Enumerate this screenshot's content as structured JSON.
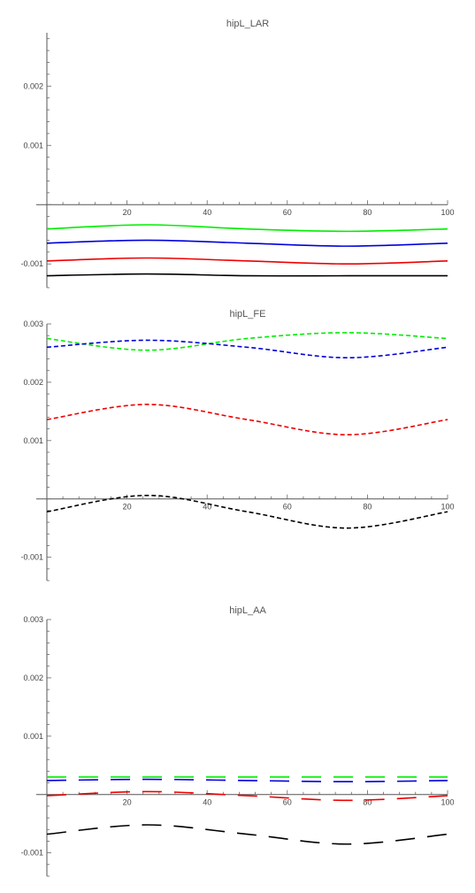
{
  "chart_data": [
    {
      "type": "line",
      "title": "hipL_LAR",
      "xlabel": "",
      "ylabel": "",
      "xlim": [
        0,
        100
      ],
      "ylim": [
        -0.0014,
        0.0029
      ],
      "x_ticks": [
        20,
        40,
        60,
        80,
        100
      ],
      "x_tick_labels": [
        "20",
        "40",
        "60",
        "80",
        "100"
      ],
      "y_ticks": [
        -0.001,
        0.001,
        0.002
      ],
      "y_tick_labels": [
        "-0.001",
        "0.001",
        "0.002"
      ],
      "grid": false,
      "series": [
        {
          "color": "#00ee00",
          "dash": "solid",
          "x": [
            0,
            25,
            50,
            75,
            100
          ],
          "y": [
            -0.00041,
            -0.00034,
            -0.00041,
            -0.00045,
            -0.00041
          ]
        },
        {
          "color": "#0000dd",
          "dash": "solid",
          "x": [
            0,
            25,
            50,
            75,
            100
          ],
          "y": [
            -0.00065,
            -0.0006,
            -0.00065,
            -0.0007,
            -0.00065
          ]
        },
        {
          "color": "#ee0000",
          "dash": "solid",
          "x": [
            0,
            25,
            50,
            75,
            100
          ],
          "y": [
            -0.00095,
            -0.0009,
            -0.00095,
            -0.001,
            -0.00095
          ]
        },
        {
          "color": "#000000",
          "dash": "solid",
          "x": [
            0,
            25,
            50,
            75,
            100
          ],
          "y": [
            -0.0012,
            -0.00117,
            -0.0012,
            -0.0012,
            -0.0012
          ]
        }
      ]
    },
    {
      "type": "line",
      "title": "hipL_FE",
      "xlabel": "",
      "ylabel": "",
      "xlim": [
        0,
        100
      ],
      "ylim": [
        -0.0014,
        0.003
      ],
      "x_ticks": [
        20,
        40,
        60,
        80,
        100
      ],
      "x_tick_labels": [
        "20",
        "40",
        "60",
        "80",
        "100"
      ],
      "y_ticks": [
        -0.001,
        0.001,
        0.002,
        0.003
      ],
      "y_tick_labels": [
        "-0.001",
        "0.001",
        "0.002",
        "0.003"
      ],
      "grid": false,
      "series": [
        {
          "color": "#00ee00",
          "dash": "short",
          "x": [
            0,
            25,
            50,
            75,
            100
          ],
          "y": [
            0.00275,
            0.00255,
            0.00275,
            0.00285,
            0.00275
          ]
        },
        {
          "color": "#0000dd",
          "dash": "short",
          "x": [
            0,
            25,
            50,
            75,
            100
          ],
          "y": [
            0.0026,
            0.00272,
            0.0026,
            0.00242,
            0.0026
          ]
        },
        {
          "color": "#ee0000",
          "dash": "short",
          "x": [
            0,
            25,
            50,
            75,
            100
          ],
          "y": [
            0.00136,
            0.00162,
            0.00136,
            0.0011,
            0.00136
          ]
        },
        {
          "color": "#000000",
          "dash": "short",
          "x": [
            0,
            25,
            50,
            75,
            100
          ],
          "y": [
            -0.00022,
            6e-05,
            -0.00022,
            -0.0005,
            -0.00022
          ]
        }
      ]
    },
    {
      "type": "line",
      "title": "hipL_AA",
      "xlabel": "",
      "ylabel": "",
      "xlim": [
        0,
        100
      ],
      "ylim": [
        -0.0014,
        0.003
      ],
      "x_ticks": [
        20,
        40,
        60,
        80,
        100
      ],
      "x_tick_labels": [
        "20",
        "40",
        "60",
        "80",
        "100"
      ],
      "y_ticks": [
        -0.001,
        0.001,
        0.002,
        0.003
      ],
      "y_tick_labels": [
        "-0.001",
        "0.001",
        "0.002",
        "0.003"
      ],
      "grid": false,
      "series": [
        {
          "color": "#00ee00",
          "dash": "long",
          "x": [
            0,
            25,
            50,
            75,
            100
          ],
          "y": [
            0.0003,
            0.0003,
            0.0003,
            0.0003,
            0.0003
          ]
        },
        {
          "color": "#0000dd",
          "dash": "long",
          "x": [
            0,
            25,
            50,
            75,
            100
          ],
          "y": [
            0.00024,
            0.00026,
            0.00024,
            0.00022,
            0.00024
          ]
        },
        {
          "color": "#ee0000",
          "dash": "long",
          "x": [
            0,
            25,
            50,
            75,
            100
          ],
          "y": [
            -2e-05,
            5e-05,
            -2e-05,
            -0.0001,
            -2e-05
          ]
        },
        {
          "color": "#000000",
          "dash": "long",
          "x": [
            0,
            25,
            50,
            75,
            100
          ],
          "y": [
            -0.00068,
            -0.00052,
            -0.00068,
            -0.00085,
            -0.00068
          ]
        }
      ]
    }
  ]
}
